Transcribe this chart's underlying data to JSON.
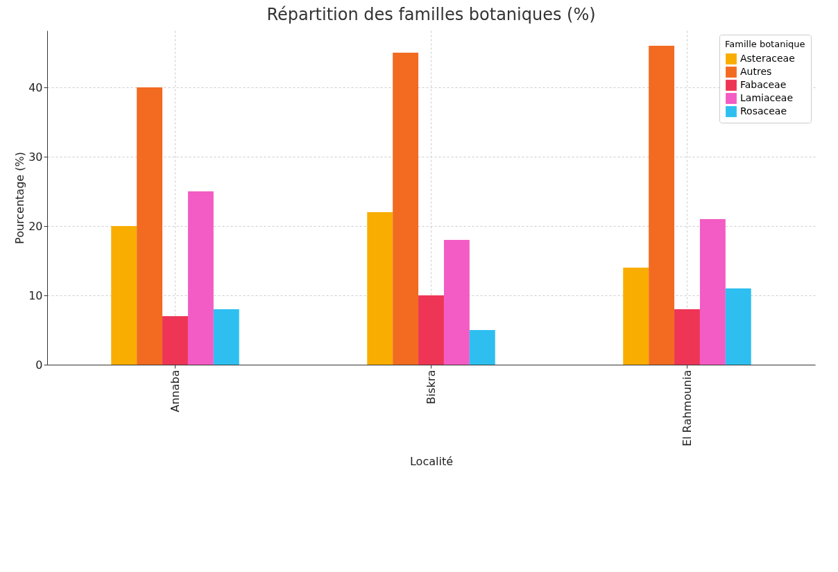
{
  "chart_data": {
    "type": "bar",
    "title": "Répartition des familles botaniques (%)",
    "xlabel": "Localité",
    "ylabel": "Pourcentage (%)",
    "legend_title": "Famille botanique",
    "categories": [
      "Annaba",
      "Biskra",
      "El Rahmounia"
    ],
    "series": [
      {
        "name": "Asteraceae",
        "color": "#f9ad00",
        "values": [
          20,
          22,
          14
        ]
      },
      {
        "name": "Autres",
        "color": "#f26b21",
        "values": [
          40,
          45,
          46
        ]
      },
      {
        "name": "Fabaceae",
        "color": "#ee3556",
        "values": [
          7,
          10,
          8
        ]
      },
      {
        "name": "Lamiaceae",
        "color": "#f25cc4",
        "values": [
          25,
          18,
          21
        ]
      },
      {
        "name": "Rosaceae",
        "color": "#2ebff0",
        "values": [
          8,
          5,
          11
        ]
      }
    ],
    "ylim": [
      0,
      48.2
    ],
    "yticks": [
      0,
      10,
      20,
      30,
      40
    ],
    "grid": true,
    "legend": "top right"
  }
}
